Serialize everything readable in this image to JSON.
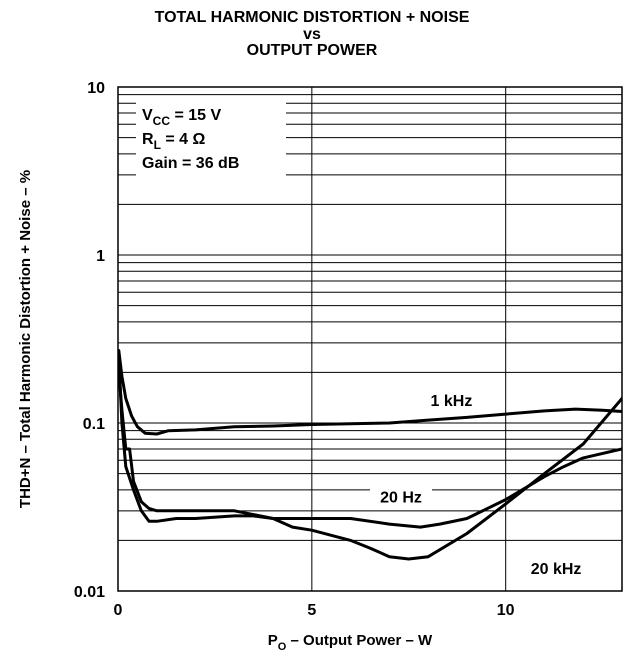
{
  "chart_data": {
    "type": "line",
    "title_lines": [
      "TOTAL HARMONIC DISTORTION + NOISE",
      "vs",
      "OUTPUT POWER"
    ],
    "xlabel": {
      "main": "P",
      "sub": "O",
      "rest": " – Output Power – W"
    },
    "ylabel": "THD+N – Total Harmonic Distortion + Noise – %",
    "xlim": [
      0,
      13
    ],
    "ylim": [
      0.01,
      10
    ],
    "yscale": "log",
    "grid": true,
    "x_ticks": [
      {
        "value": 0,
        "label": "0"
      },
      {
        "value": 5,
        "label": "5"
      },
      {
        "value": 10,
        "label": "10"
      }
    ],
    "y_ticks": [
      {
        "value": 0.01,
        "label": "0.01"
      },
      {
        "value": 0.1,
        "label": "0.1"
      },
      {
        "value": 1,
        "label": "1"
      },
      {
        "value": 10,
        "label": "10"
      }
    ],
    "conditions": [
      {
        "main": "V",
        "sub": "CC",
        "rest": " = 15 V"
      },
      {
        "main": "R",
        "sub": "L",
        "rest": " = 4 Ω"
      },
      {
        "main": "Gain = 36 dB",
        "sub": "",
        "rest": ""
      }
    ],
    "series": [
      {
        "name": "1 kHz",
        "points": [
          [
            0.02,
            0.27
          ],
          [
            0.1,
            0.19
          ],
          [
            0.2,
            0.14
          ],
          [
            0.35,
            0.11
          ],
          [
            0.5,
            0.095
          ],
          [
            0.7,
            0.087
          ],
          [
            1.0,
            0.086
          ],
          [
            1.3,
            0.09
          ],
          [
            2.0,
            0.091
          ],
          [
            3.0,
            0.095
          ],
          [
            4.0,
            0.096
          ],
          [
            5.0,
            0.098
          ],
          [
            6.0,
            0.099
          ],
          [
            7.0,
            0.1
          ],
          [
            8.0,
            0.104
          ],
          [
            9.0,
            0.108
          ],
          [
            10.0,
            0.113
          ],
          [
            11.0,
            0.118
          ],
          [
            11.8,
            0.121
          ],
          [
            12.5,
            0.119
          ],
          [
            13.0,
            0.117
          ]
        ]
      },
      {
        "name": "20 Hz",
        "points": [
          [
            0.02,
            0.2
          ],
          [
            0.1,
            0.12
          ],
          [
            0.2,
            0.07
          ],
          [
            0.3,
            0.07
          ],
          [
            0.4,
            0.045
          ],
          [
            0.6,
            0.034
          ],
          [
            0.8,
            0.031
          ],
          [
            1.0,
            0.03
          ],
          [
            1.5,
            0.03
          ],
          [
            2.0,
            0.03
          ],
          [
            3.0,
            0.03
          ],
          [
            4.0,
            0.027
          ],
          [
            5.0,
            0.027
          ],
          [
            6.0,
            0.027
          ],
          [
            7.0,
            0.025
          ],
          [
            7.8,
            0.024
          ],
          [
            8.3,
            0.025
          ],
          [
            9.0,
            0.027
          ],
          [
            10.0,
            0.035
          ],
          [
            11.0,
            0.048
          ],
          [
            11.5,
            0.055
          ],
          [
            12.0,
            0.062
          ],
          [
            13.0,
            0.07
          ]
        ]
      },
      {
        "name": "20 kHz",
        "points": [
          [
            0.02,
            0.25
          ],
          [
            0.1,
            0.1
          ],
          [
            0.2,
            0.055
          ],
          [
            0.4,
            0.04
          ],
          [
            0.6,
            0.03
          ],
          [
            0.8,
            0.026
          ],
          [
            1.0,
            0.026
          ],
          [
            1.5,
            0.027
          ],
          [
            2.0,
            0.027
          ],
          [
            3.0,
            0.028
          ],
          [
            3.5,
            0.028
          ],
          [
            4.0,
            0.027
          ],
          [
            4.5,
            0.024
          ],
          [
            5.0,
            0.023
          ],
          [
            6.0,
            0.02
          ],
          [
            6.5,
            0.018
          ],
          [
            7.0,
            0.016
          ],
          [
            7.5,
            0.0155
          ],
          [
            8.0,
            0.016
          ],
          [
            9.0,
            0.022
          ],
          [
            10.0,
            0.033
          ],
          [
            11.0,
            0.05
          ],
          [
            12.0,
            0.075
          ],
          [
            13.0,
            0.14
          ]
        ]
      }
    ],
    "series_labels": [
      {
        "series": "1 kHz",
        "text": "1 kHz",
        "x": 8.6,
        "y": 0.135
      },
      {
        "series": "20 Hz",
        "text": "20 Hz",
        "x": 7.3,
        "y": 0.036
      },
      {
        "series": "20 kHz",
        "text": "20 kHz",
        "x": 11.3,
        "y": 0.0135
      }
    ]
  }
}
